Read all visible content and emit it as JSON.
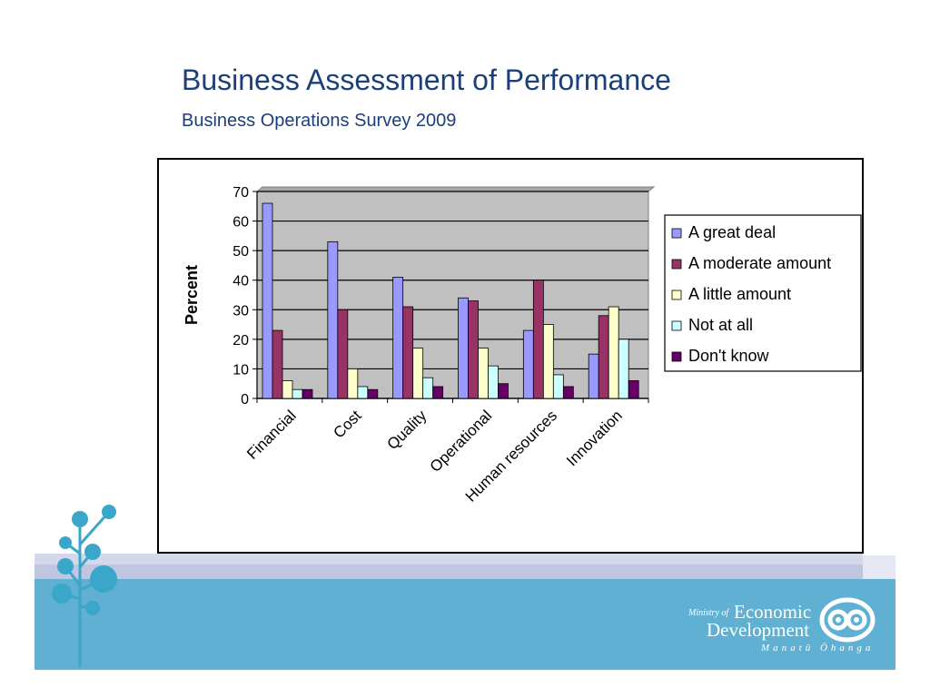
{
  "slide": {
    "title": "Business Assessment of Performance",
    "subtitle": "Business Operations Survey 2009"
  },
  "chart_data": {
    "type": "bar",
    "title": "",
    "xlabel": "",
    "ylabel": "Percent",
    "ylim": [
      0,
      70
    ],
    "yticks": [
      0,
      10,
      20,
      30,
      40,
      50,
      60,
      70
    ],
    "grid": true,
    "legend_position": "right",
    "categories": [
      "Financial",
      "Cost",
      "Quality",
      "Operational",
      "Human resources",
      "Innovation"
    ],
    "series": [
      {
        "name": "A great deal",
        "color": "#9999ff",
        "values": [
          66,
          53,
          41,
          34,
          23,
          15
        ]
      },
      {
        "name": "A moderate amount",
        "color": "#993366",
        "values": [
          23,
          30,
          31,
          33,
          40,
          28
        ]
      },
      {
        "name": "A little amount",
        "color": "#ffffcc",
        "values": [
          6,
          10,
          17,
          17,
          25,
          31
        ]
      },
      {
        "name": "Not at all",
        "color": "#ccffff",
        "values": [
          3,
          4,
          7,
          11,
          8,
          20
        ]
      },
      {
        "name": "Don't know",
        "color": "#660066",
        "values": [
          3,
          3,
          4,
          5,
          4,
          6
        ]
      }
    ]
  },
  "logo": {
    "ministry_of": "Ministry of",
    "economic": "Economic",
    "development": "Development",
    "maori_name": "Manatū Ōhanga"
  }
}
